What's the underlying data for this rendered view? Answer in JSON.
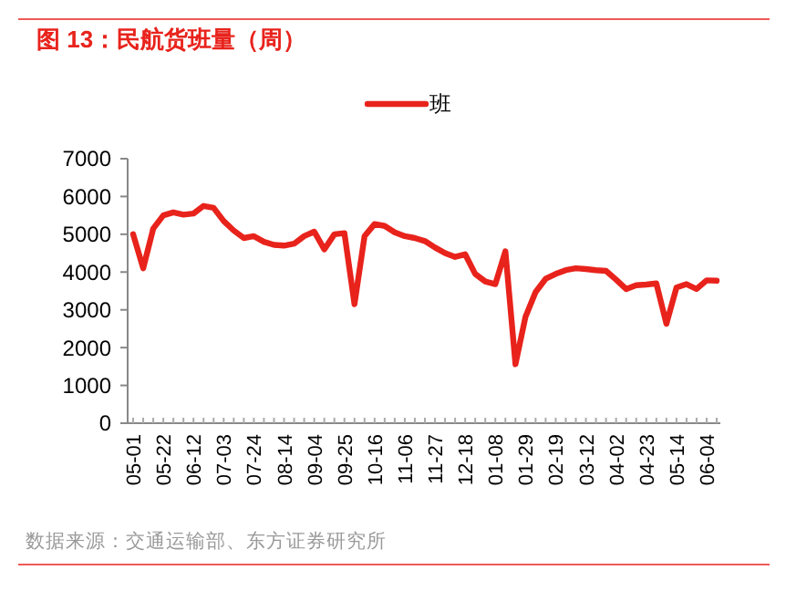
{
  "chart_data": {
    "type": "line",
    "title": "图 13：民航货班量（周）",
    "categories": [
      "05-01",
      null,
      null,
      "05-22",
      null,
      null,
      "06-12",
      null,
      null,
      "07-03",
      null,
      null,
      "07-24",
      null,
      null,
      "08-14",
      null,
      null,
      "09-04",
      null,
      null,
      "09-25",
      null,
      null,
      "10-16",
      null,
      null,
      "11-06",
      null,
      null,
      "11-27",
      null,
      null,
      "12-18",
      null,
      null,
      "01-08",
      null,
      null,
      "01-29",
      null,
      null,
      "02-19",
      null,
      null,
      "03-12",
      null,
      null,
      "04-02",
      null,
      null,
      "04-23",
      null,
      null,
      "05-14",
      null,
      null,
      "06-04",
      null
    ],
    "series": [
      {
        "name": "班",
        "color": "#e8231c",
        "values": [
          5000,
          4100,
          5150,
          5500,
          5580,
          5520,
          5550,
          5750,
          5700,
          5350,
          5100,
          4900,
          4950,
          4800,
          4720,
          4700,
          4750,
          4950,
          5070,
          4600,
          5000,
          5030,
          3150,
          4950,
          5270,
          5220,
          5050,
          4950,
          4900,
          4820,
          4650,
          4500,
          4400,
          4470,
          3950,
          3750,
          3680,
          4550,
          1560,
          2820,
          3470,
          3820,
          3950,
          4050,
          4100,
          4080,
          4050,
          4030,
          3800,
          3550,
          3650,
          3670,
          3700,
          2630,
          3590,
          3680,
          3550,
          3780,
          3770
        ]
      }
    ],
    "ylim": [
      0,
      7000
    ],
    "yticks": [
      0,
      1000,
      2000,
      3000,
      4000,
      5000,
      6000,
      7000
    ],
    "legend": "top",
    "grid": false,
    "marker": "none",
    "line_style": "solid",
    "annotations": [
      "数据来源：交通运输部、东方证券研究所"
    ]
  }
}
